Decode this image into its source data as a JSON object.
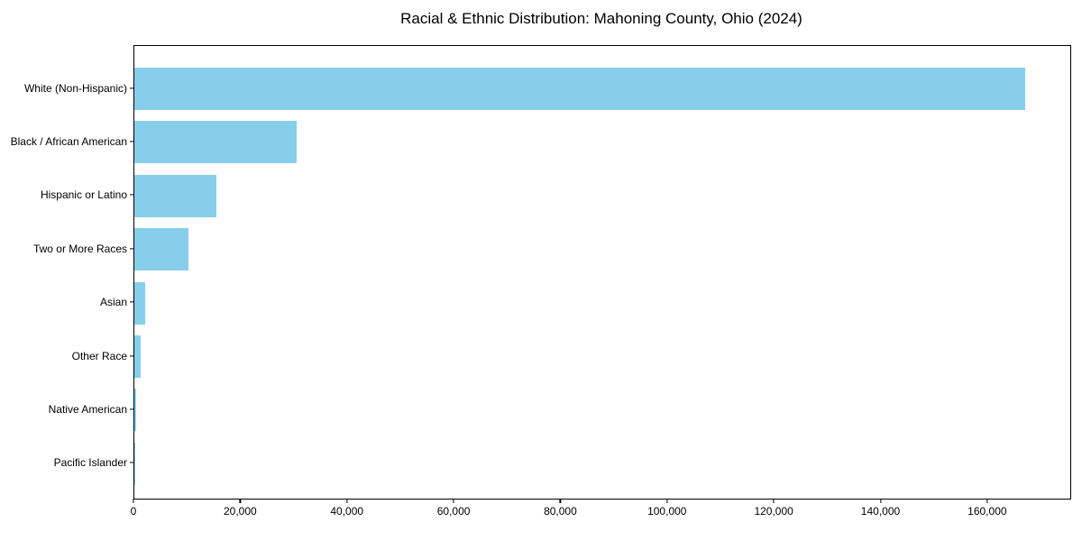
{
  "title": "Racial & Ethnic Distribution: Mahoning County, Ohio (2024)",
  "chart_data": {
    "type": "bar",
    "orientation": "horizontal",
    "title": "Racial & Ethnic Distribution: Mahoning County, Ohio (2024)",
    "xlabel": "",
    "ylabel": "",
    "grid": false,
    "legend": "none",
    "bar_color": "#87CEEB",
    "categories": [
      "White (Non-Hispanic)",
      "Black / African American",
      "Hispanic or Latino",
      "Two or More Races",
      "Asian",
      "Other Race",
      "Native American",
      "Pacific Islander"
    ],
    "values": [
      167000,
      30500,
      15400,
      10100,
      2000,
      1100,
      300,
      50
    ],
    "xlim": [
      0,
      175400
    ],
    "xticks": [
      0,
      20000,
      40000,
      60000,
      80000,
      100000,
      120000,
      140000,
      160000
    ],
    "xtick_labels": [
      "0",
      "20,000",
      "40,000",
      "60,000",
      "80,000",
      "100,000",
      "120,000",
      "140,000",
      "160,000"
    ]
  }
}
